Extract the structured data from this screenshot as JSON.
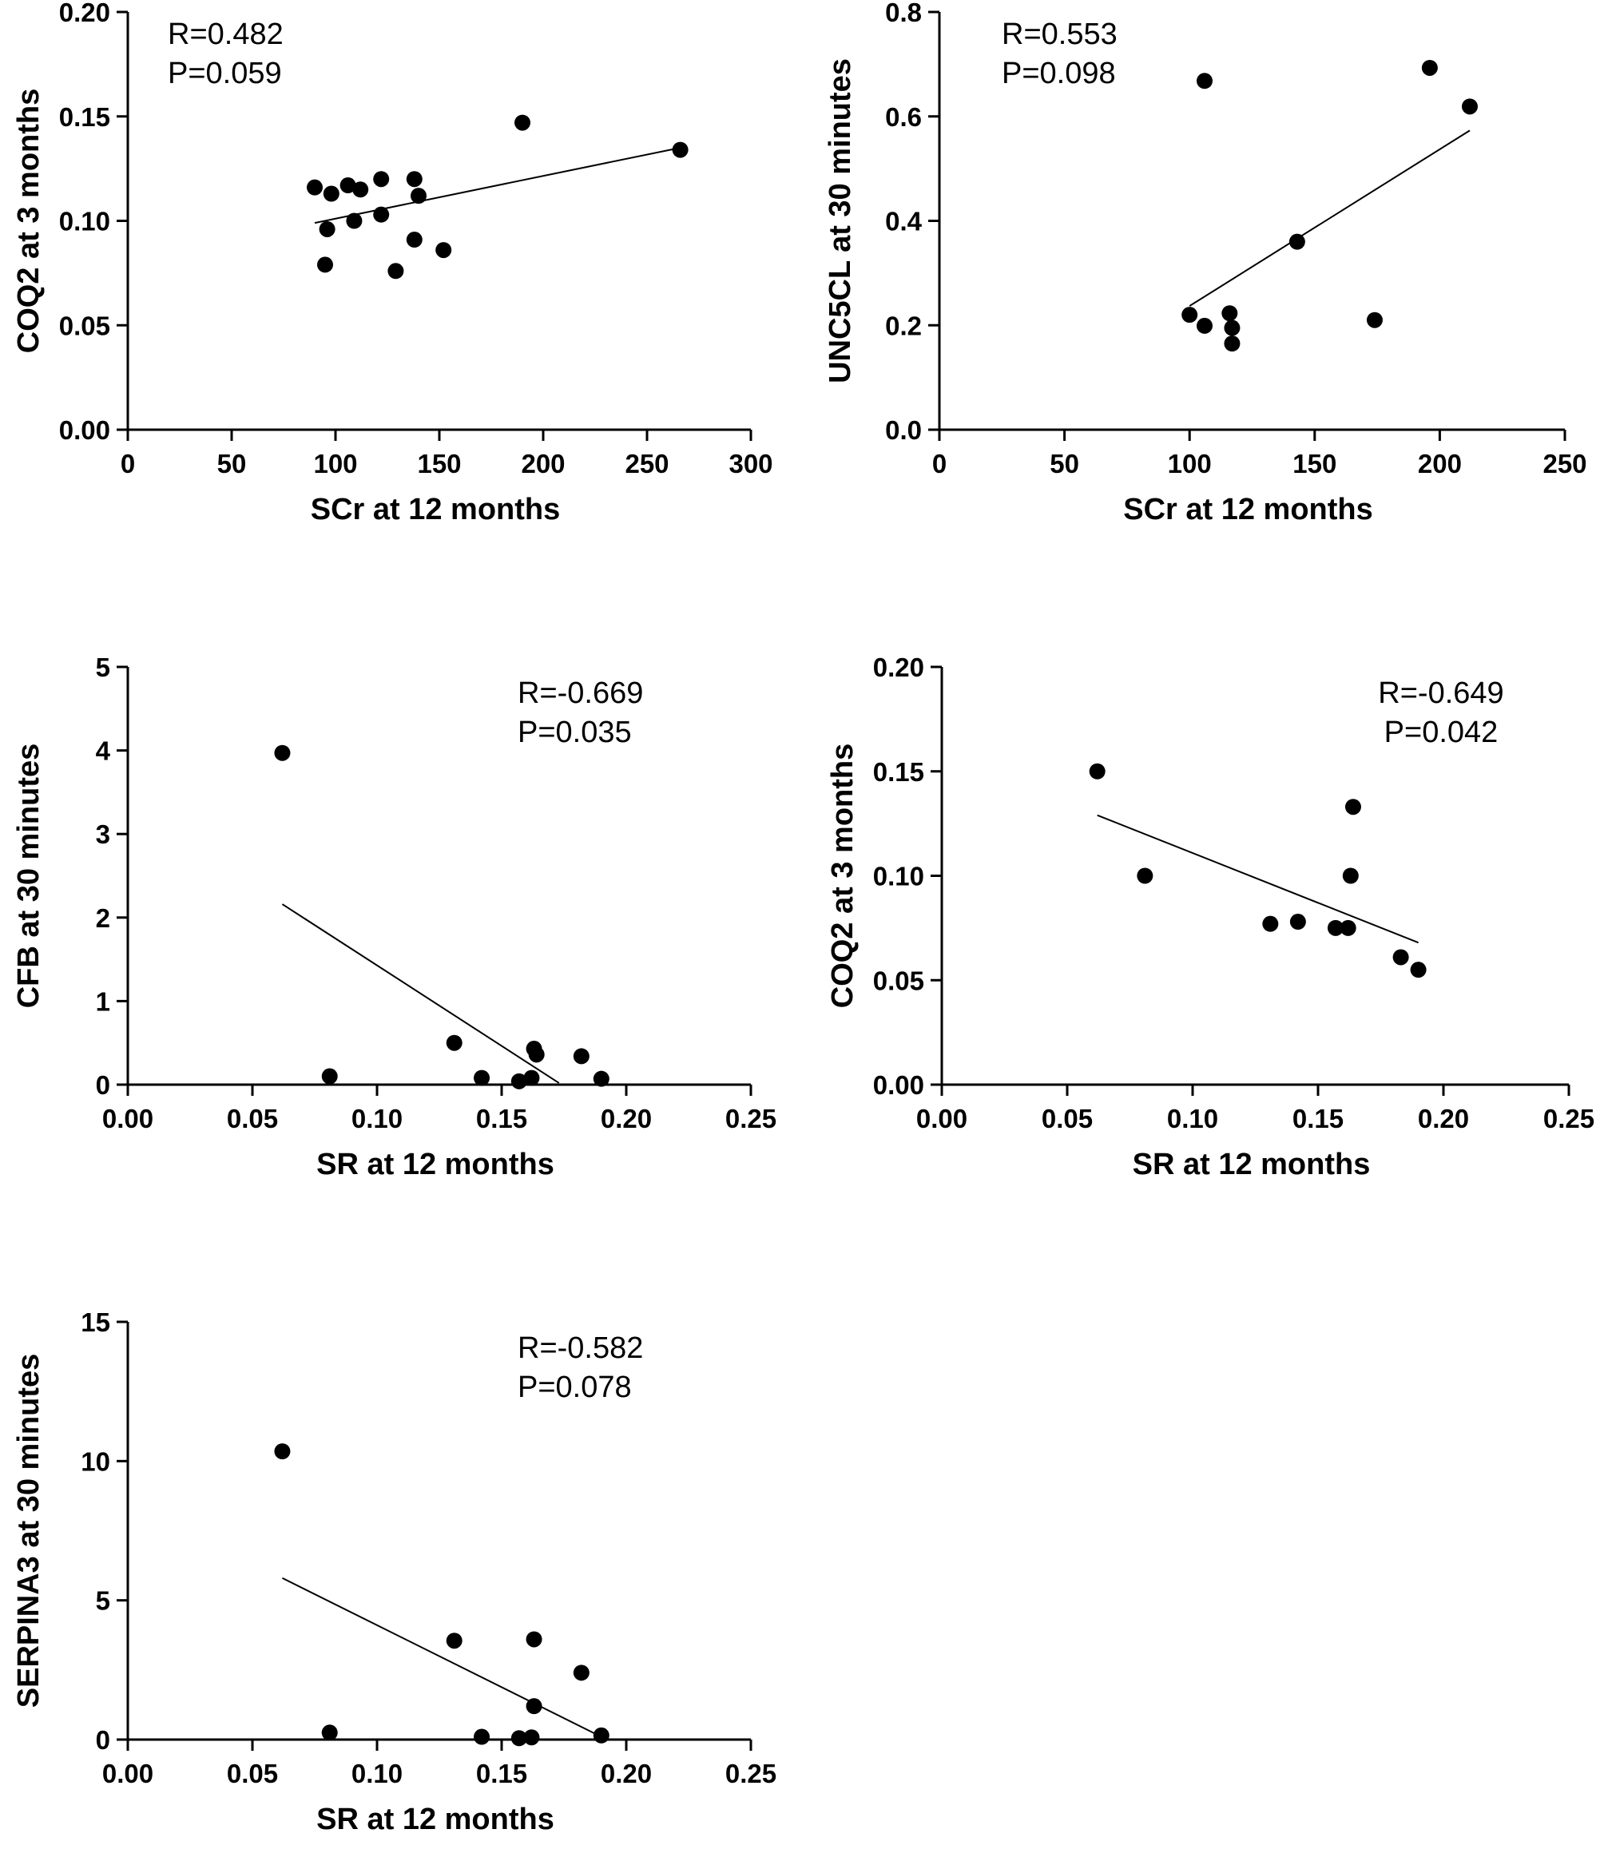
{
  "chart_data": [
    {
      "type": "scatter",
      "xlabel": "SCr at 12 months",
      "ylabel": "COQ2 at 3 months",
      "xlim": [
        0,
        300
      ],
      "ylim": [
        0,
        0.2
      ],
      "xticks": [
        "0",
        "50",
        "100",
        "150",
        "200",
        "250",
        "300"
      ],
      "yticks": [
        "0.00",
        "0.05",
        "0.10",
        "0.15",
        "0.20"
      ],
      "annotation": [
        "R=0.482",
        "P=0.059"
      ],
      "points": [
        [
          90,
          0.116
        ],
        [
          96,
          0.096
        ],
        [
          95,
          0.079
        ],
        [
          98,
          0.113
        ],
        [
          106,
          0.117
        ],
        [
          109,
          0.1
        ],
        [
          112,
          0.115
        ],
        [
          122,
          0.12
        ],
        [
          122,
          0.103
        ],
        [
          129,
          0.076
        ],
        [
          138,
          0.12
        ],
        [
          138,
          0.091
        ],
        [
          140,
          0.112
        ],
        [
          152,
          0.086
        ],
        [
          190,
          0.147
        ],
        [
          266,
          0.134
        ]
      ],
      "fit": [
        [
          90,
          0.099
        ],
        [
          266,
          0.135
        ]
      ]
    },
    {
      "type": "scatter",
      "xlabel": "SCr at 12 months",
      "ylabel": "UNC5CL at 30 minutes",
      "xlim": [
        0,
        250
      ],
      "ylim": [
        0,
        0.8
      ],
      "xticks": [
        "0",
        "50",
        "100",
        "150",
        "200",
        "250"
      ],
      "yticks": [
        "0.0",
        "0.2",
        "0.4",
        "0.6",
        "0.8"
      ],
      "annotation": [
        "R=0.553",
        "P=0.098"
      ],
      "points": [
        [
          100,
          0.22
        ],
        [
          106,
          0.668
        ],
        [
          106,
          0.199
        ],
        [
          116,
          0.223
        ],
        [
          117,
          0.195
        ],
        [
          117,
          0.165
        ],
        [
          143,
          0.36
        ],
        [
          174,
          0.21
        ],
        [
          196,
          0.693
        ],
        [
          212,
          0.619
        ]
      ],
      "fit": [
        [
          100,
          0.237
        ],
        [
          212,
          0.573
        ]
      ]
    },
    {
      "type": "scatter",
      "xlabel": "SR at 12 months",
      "ylabel": "CFB at 30 minutes",
      "xlim": [
        0,
        0.25
      ],
      "ylim": [
        0,
        5
      ],
      "xticks": [
        "0.00",
        "0.05",
        "0.10",
        "0.15",
        "0.20",
        "0.25"
      ],
      "yticks": [
        "0",
        "1",
        "2",
        "3",
        "4",
        "5"
      ],
      "annotation": [
        "R=-0.669",
        "P=0.035"
      ],
      "points": [
        [
          0.062,
          3.97
        ],
        [
          0.081,
          0.1
        ],
        [
          0.131,
          0.5
        ],
        [
          0.142,
          0.08
        ],
        [
          0.157,
          0.04
        ],
        [
          0.162,
          0.08
        ],
        [
          0.163,
          0.43
        ],
        [
          0.164,
          0.36
        ],
        [
          0.182,
          0.34
        ],
        [
          0.19,
          0.07
        ]
      ],
      "fit": [
        [
          0.062,
          2.16
        ],
        [
          0.173,
          0.02
        ]
      ]
    },
    {
      "type": "scatter",
      "xlabel": "SR at 12 months",
      "ylabel": "COQ2 at 3 months",
      "xlim": [
        0,
        0.25
      ],
      "ylim": [
        0,
        0.2
      ],
      "xticks": [
        "0.00",
        "0.05",
        "0.10",
        "0.15",
        "0.20",
        "0.25"
      ],
      "yticks": [
        "0.00",
        "0.05",
        "0.10",
        "0.15",
        "0.20"
      ],
      "annotation": [
        "R=-0.649",
        "P=0.042"
      ],
      "points": [
        [
          0.062,
          0.15
        ],
        [
          0.081,
          0.1
        ],
        [
          0.131,
          0.077
        ],
        [
          0.142,
          0.078
        ],
        [
          0.157,
          0.075
        ],
        [
          0.162,
          0.075
        ],
        [
          0.163,
          0.1
        ],
        [
          0.164,
          0.133
        ],
        [
          0.183,
          0.061
        ],
        [
          0.19,
          0.055
        ]
      ],
      "fit": [
        [
          0.062,
          0.129
        ],
        [
          0.19,
          0.068
        ]
      ]
    },
    {
      "type": "scatter",
      "xlabel": "SR at 12 months",
      "ylabel": "SERPINA3 at 30 minutes",
      "xlim": [
        0,
        0.25
      ],
      "ylim": [
        0,
        15
      ],
      "xticks": [
        "0.00",
        "0.05",
        "0.10",
        "0.15",
        "0.20",
        "0.25"
      ],
      "yticks": [
        "0",
        "5",
        "10",
        "15"
      ],
      "annotation": [
        "R=-0.582",
        "P=0.078"
      ],
      "points": [
        [
          0.062,
          10.35
        ],
        [
          0.081,
          0.25
        ],
        [
          0.131,
          3.55
        ],
        [
          0.142,
          0.1
        ],
        [
          0.157,
          0.05
        ],
        [
          0.162,
          0.08
        ],
        [
          0.163,
          1.2
        ],
        [
          0.163,
          3.6
        ],
        [
          0.182,
          2.4
        ],
        [
          0.19,
          0.15
        ]
      ],
      "fit": [
        [
          0.062,
          5.8
        ],
        [
          0.19,
          0.1
        ]
      ]
    }
  ]
}
